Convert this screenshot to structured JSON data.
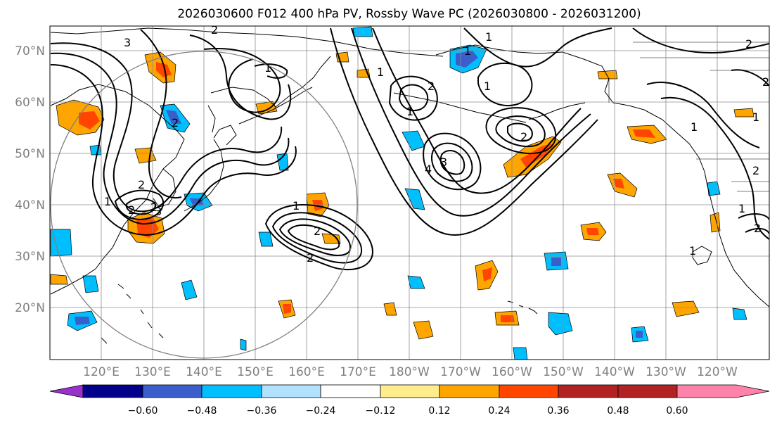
{
  "title": "2026030600 F012 400 hPa PV, Rossby Wave PC (2026030800 - 2026031200)",
  "map": {
    "lat_ticks": [
      "70°N",
      "60°N",
      "50°N",
      "40°N",
      "30°N",
      "20°N"
    ],
    "lon_ticks": [
      "120°E",
      "130°E",
      "140°E",
      "150°E",
      "160°E",
      "170°E",
      "180°W",
      "170°W",
      "160°W",
      "150°W",
      "140°W",
      "130°W",
      "120°W"
    ],
    "contour_labels": [
      "3",
      "2",
      "1",
      "2",
      "1",
      "2",
      "1",
      "2",
      "2",
      "1",
      "2",
      "3",
      "4",
      "1",
      "1",
      "2",
      "1",
      "2",
      "2",
      "1",
      "1",
      "2",
      "1",
      "2",
      "2",
      "1",
      "2",
      "3",
      "1"
    ],
    "colors": {
      "contour": "#000000",
      "coast": "#000000",
      "grid": "#8c8c8c",
      "circle": "#808080"
    }
  },
  "colorbar": {
    "colors": [
      "#9932cc",
      "#00008b",
      "#3a5fcd",
      "#00bfff",
      "#b0e2ff",
      "#ffffff",
      "#ffec8b",
      "#ffa500",
      "#ff4500",
      "#b22222",
      "#ff82ab"
    ],
    "labels": [
      "−0.60",
      "−0.48",
      "−0.36",
      "−0.24",
      "−0.12",
      "0.12",
      "0.24",
      "0.36",
      "0.48",
      "0.60"
    ]
  }
}
